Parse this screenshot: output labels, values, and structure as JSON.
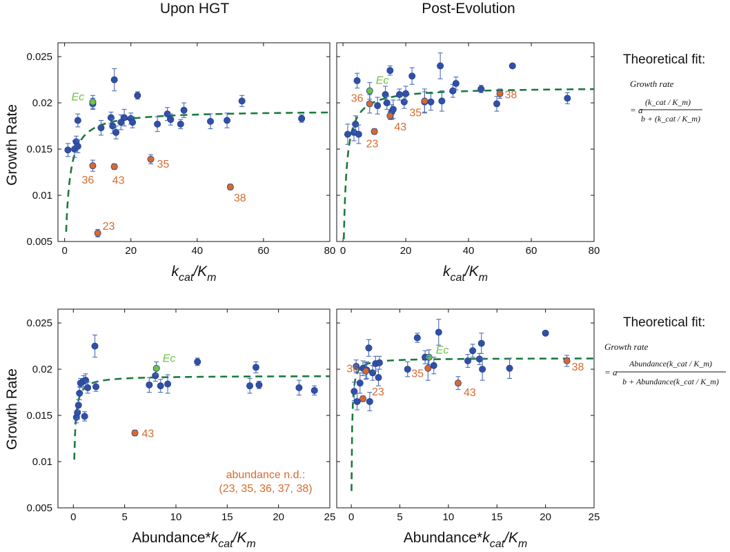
{
  "figure": {
    "column_titles": [
      "Upon HGT",
      "Post-Evolution"
    ],
    "ylabel": "Growth Rate",
    "theoretical_fit": {
      "title": "Theoretical fit:",
      "formula_top": {
        "lhs": "Growth rate",
        "numerator": "(k_cat / K_m)",
        "denominator": "b + (k_cat / K_m)"
      },
      "formula_bottom": {
        "lhs": "Growth rate",
        "numerator": "Abundance(k_cat / K_m)",
        "denominator": "b + Abundance(k_cat / K_m)"
      }
    },
    "footnote": [
      "abundance n.d.:",
      "(23, 35, 36, 37, 38)"
    ]
  },
  "colors": {
    "normal": "#3050a8",
    "highlight": "#d8692e",
    "ec": "#6cc24a",
    "fit": "#1a7a3a",
    "errorbar": "#4a6ab8"
  },
  "chart_data": [
    {
      "type": "scatter",
      "panel": "top-left",
      "xlabel_main": "k",
      "xlabel_sub1": "cat",
      "xlabel_mid": "/K",
      "xlabel_sub2": "m",
      "xlim": [
        -2,
        80
      ],
      "ylim": [
        0.005,
        0.0265
      ],
      "xticks": [
        0,
        20,
        40,
        60,
        80
      ],
      "xticklabels": [
        "0",
        "20",
        "40",
        "60",
        "80"
      ],
      "yticks": [
        0.005,
        0.01,
        0.015,
        0.02,
        0.025
      ],
      "yticklabels": [
        "0.005",
        "0.01",
        "0.015",
        "0.02",
        "0.025"
      ],
      "fit": {
        "a": 0.0192,
        "b": 1.0
      },
      "points": [
        {
          "x": 1,
          "y": 0.0149,
          "e": 0.0007,
          "c": "n"
        },
        {
          "x": 3,
          "y": 0.015,
          "e": 0.0009,
          "c": "n"
        },
        {
          "x": 3.5,
          "y": 0.0158,
          "e": 0.0006,
          "c": "n"
        },
        {
          "x": 4,
          "y": 0.0153,
          "e": 0.0007,
          "c": "n"
        },
        {
          "x": 4,
          "y": 0.0181,
          "e": 0.0007,
          "c": "n"
        },
        {
          "x": 8.5,
          "y": 0.0199,
          "e": 0.0006,
          "c": "n"
        },
        {
          "x": 11,
          "y": 0.0173,
          "e": 0.0008,
          "c": "n"
        },
        {
          "x": 14,
          "y": 0.0184,
          "e": 0.0006,
          "c": "n"
        },
        {
          "x": 14.5,
          "y": 0.0175,
          "e": 0.0008,
          "c": "n"
        },
        {
          "x": 15,
          "y": 0.0225,
          "e": 0.0012,
          "c": "n"
        },
        {
          "x": 15.5,
          "y": 0.0168,
          "e": 0.0007,
          "c": "n"
        },
        {
          "x": 17,
          "y": 0.0179,
          "e": 0.0008,
          "c": "n"
        },
        {
          "x": 18,
          "y": 0.0184,
          "e": 0.0009,
          "c": "n"
        },
        {
          "x": 20,
          "y": 0.0183,
          "e": 0.0006,
          "c": "n"
        },
        {
          "x": 20.5,
          "y": 0.0179,
          "e": 0.0006,
          "c": "n"
        },
        {
          "x": 22,
          "y": 0.0208,
          "e": 0.0004,
          "c": "n"
        },
        {
          "x": 28,
          "y": 0.0177,
          "e": 0.0008,
          "c": "n"
        },
        {
          "x": 31,
          "y": 0.0188,
          "e": 0.0007,
          "c": "n"
        },
        {
          "x": 32,
          "y": 0.0182,
          "e": 0.0006,
          "c": "n"
        },
        {
          "x": 35,
          "y": 0.0177,
          "e": 0.0005,
          "c": "n"
        },
        {
          "x": 36,
          "y": 0.0192,
          "e": 0.0008,
          "c": "n"
        },
        {
          "x": 44,
          "y": 0.018,
          "e": 0.0008,
          "c": "n"
        },
        {
          "x": 49,
          "y": 0.0181,
          "e": 0.0008,
          "c": "n"
        },
        {
          "x": 53.5,
          "y": 0.0202,
          "e": 0.0006,
          "c": "n"
        },
        {
          "x": 71.5,
          "y": 0.0183,
          "e": 0.0004,
          "c": "n"
        },
        {
          "x": 8.5,
          "y": 0.0201,
          "e": 0.0007,
          "c": "ec",
          "label": "Ec",
          "ldx": -31,
          "ldy": -2,
          "italic": true
        },
        {
          "x": 8.5,
          "y": 0.0132,
          "e": 0.0006,
          "c": "h",
          "label": "36",
          "ldx": -16,
          "ldy": 26
        },
        {
          "x": 15,
          "y": 0.0131,
          "e": 0.0003,
          "c": "h",
          "label": "43",
          "ldx": -3,
          "ldy": 25
        },
        {
          "x": 26,
          "y": 0.0139,
          "e": 0.0005,
          "c": "h",
          "label": "35",
          "ldx": 9,
          "ldy": 12
        },
        {
          "x": 50,
          "y": 0.0109,
          "e": 0.0003,
          "c": "h",
          "label": "38",
          "ldx": 5,
          "ldy": 21
        },
        {
          "x": 10,
          "y": 0.0059,
          "e": 0.0004,
          "c": "h",
          "label": "23",
          "ldx": 7,
          "ldy": -5
        }
      ]
    },
    {
      "type": "scatter",
      "panel": "top-right",
      "xlabel_main": "k",
      "xlabel_sub1": "cat",
      "xlabel_mid": "/K",
      "xlabel_sub2": "m",
      "xlim": [
        -2,
        80
      ],
      "ylim": [
        0.005,
        0.0265
      ],
      "xticks": [
        0,
        20,
        40,
        60,
        80
      ],
      "xticklabels": [
        "0",
        "20",
        "40",
        "60",
        "80"
      ],
      "yticks": [
        0.005,
        0.01,
        0.015,
        0.02,
        0.025
      ],
      "yticklabels": [],
      "fit": {
        "a": 0.0217,
        "b": 0.8
      },
      "points": [
        {
          "x": 1.5,
          "y": 0.0166,
          "e": 0.0011,
          "c": "n"
        },
        {
          "x": 3.5,
          "y": 0.0168,
          "e": 0.0009,
          "c": "n"
        },
        {
          "x": 4,
          "y": 0.0177,
          "e": 0.0009,
          "c": "n"
        },
        {
          "x": 4.5,
          "y": 0.0224,
          "e": 0.0008,
          "c": "n"
        },
        {
          "x": 5,
          "y": 0.0166,
          "e": 0.001,
          "c": "n"
        },
        {
          "x": 11,
          "y": 0.0197,
          "e": 0.0009,
          "c": "n"
        },
        {
          "x": 13.5,
          "y": 0.0209,
          "e": 0.0009,
          "c": "n"
        },
        {
          "x": 14,
          "y": 0.02,
          "e": 0.0007,
          "c": "n"
        },
        {
          "x": 15,
          "y": 0.0235,
          "e": 0.0005,
          "c": "n"
        },
        {
          "x": 15.5,
          "y": 0.019,
          "e": 0.0008,
          "c": "n"
        },
        {
          "x": 16,
          "y": 0.0193,
          "e": 0.001,
          "c": "n"
        },
        {
          "x": 18,
          "y": 0.0209,
          "e": 0.0006,
          "c": "n"
        },
        {
          "x": 19.5,
          "y": 0.0201,
          "e": 0.0007,
          "c": "n"
        },
        {
          "x": 20,
          "y": 0.021,
          "e": 0.0008,
          "c": "n"
        },
        {
          "x": 22,
          "y": 0.0229,
          "e": 0.0009,
          "c": "n"
        },
        {
          "x": 26,
          "y": 0.0201,
          "e": 0.0011,
          "c": "n"
        },
        {
          "x": 28,
          "y": 0.0201,
          "e": 0.0009,
          "c": "n"
        },
        {
          "x": 31,
          "y": 0.024,
          "e": 0.0014,
          "c": "n"
        },
        {
          "x": 31.5,
          "y": 0.0202,
          "e": 0.0011,
          "c": "n"
        },
        {
          "x": 35,
          "y": 0.0213,
          "e": 0.0007,
          "c": "n"
        },
        {
          "x": 36,
          "y": 0.0221,
          "e": 0.0007,
          "c": "n"
        },
        {
          "x": 44,
          "y": 0.0215,
          "e": 0.0004,
          "c": "n"
        },
        {
          "x": 49,
          "y": 0.0199,
          "e": 0.0008,
          "c": "n"
        },
        {
          "x": 54,
          "y": 0.024,
          "e": 0.0002,
          "c": "n"
        },
        {
          "x": 71.5,
          "y": 0.0205,
          "e": 0.0006,
          "c": "n"
        },
        {
          "x": 8.5,
          "y": 0.0213,
          "e": 0.0009,
          "c": "ec",
          "label": "Ec",
          "ldx": 9,
          "ldy": -10,
          "italic": true
        },
        {
          "x": 8.5,
          "y": 0.0199,
          "e": 0.001,
          "c": "h",
          "label": "36",
          "ldx": -27,
          "ldy": -3
        },
        {
          "x": 10,
          "y": 0.0169,
          "e": 0.0003,
          "c": "h",
          "label": "23",
          "ldx": -12,
          "ldy": 23
        },
        {
          "x": 15,
          "y": 0.0186,
          "e": 0.0004,
          "c": "h",
          "label": "43",
          "ldx": 6,
          "ldy": 21
        },
        {
          "x": 26,
          "y": 0.0202,
          "e": 0.0013,
          "c": "h",
          "label": "35",
          "ldx": -22,
          "ldy": 22
        },
        {
          "x": 50,
          "y": 0.021,
          "e": 0.0005,
          "c": "h",
          "label": "38",
          "ldx": 7,
          "ldy": 7
        }
      ]
    },
    {
      "type": "scatter",
      "panel": "bottom-left",
      "xlabel_main": "Abundance*k",
      "xlabel_sub1": "cat",
      "xlabel_mid": "/K",
      "xlabel_sub2": "m",
      "xlim": [
        -1.5,
        25
      ],
      "ylim": [
        0.005,
        0.0265
      ],
      "xticks": [
        0,
        5,
        10,
        15,
        20,
        25
      ],
      "xticklabels": [
        "0",
        "5",
        "10",
        "15",
        "20",
        "25"
      ],
      "yticks": [
        0.005,
        0.01,
        0.015,
        0.02,
        0.025
      ],
      "yticklabels": [
        "0.005",
        "0.01",
        "0.015",
        "0.02",
        "0.025"
      ],
      "fit": {
        "a": 0.0193,
        "b": 0.08
      },
      "points": [
        {
          "x": 0.3,
          "y": 0.0148,
          "e": 0.0006,
          "c": "n"
        },
        {
          "x": 0.4,
          "y": 0.0153,
          "e": 0.0007,
          "c": "n"
        },
        {
          "x": 0.5,
          "y": 0.0161,
          "e": 0.0006,
          "c": "n"
        },
        {
          "x": 0.6,
          "y": 0.0174,
          "e": 0.0007,
          "c": "n"
        },
        {
          "x": 0.7,
          "y": 0.0185,
          "e": 0.0005,
          "c": "n"
        },
        {
          "x": 1.0,
          "y": 0.0187,
          "e": 0.0006,
          "c": "n"
        },
        {
          "x": 1.1,
          "y": 0.0149,
          "e": 0.0005,
          "c": "n"
        },
        {
          "x": 1.2,
          "y": 0.0188,
          "e": 0.0007,
          "c": "n"
        },
        {
          "x": 1.4,
          "y": 0.018,
          "e": 0.0006,
          "c": "n"
        },
        {
          "x": 2.1,
          "y": 0.0225,
          "e": 0.0012,
          "c": "n"
        },
        {
          "x": 2.2,
          "y": 0.0181,
          "e": 0.0005,
          "c": "n"
        },
        {
          "x": 7.4,
          "y": 0.0183,
          "e": 0.0008,
          "c": "n"
        },
        {
          "x": 8.0,
          "y": 0.0193,
          "e": 0.0006,
          "c": "n"
        },
        {
          "x": 8.5,
          "y": 0.0182,
          "e": 0.0007,
          "c": "n"
        },
        {
          "x": 9.2,
          "y": 0.0184,
          "e": 0.001,
          "c": "n"
        },
        {
          "x": 12.1,
          "y": 0.0208,
          "e": 0.0004,
          "c": "n"
        },
        {
          "x": 17.2,
          "y": 0.0182,
          "e": 0.0008,
          "c": "n"
        },
        {
          "x": 17.8,
          "y": 0.0202,
          "e": 0.0006,
          "c": "n"
        },
        {
          "x": 18.1,
          "y": 0.0183,
          "e": 0.0004,
          "c": "n"
        },
        {
          "x": 22.0,
          "y": 0.018,
          "e": 0.0008,
          "c": "n"
        },
        {
          "x": 23.5,
          "y": 0.0177,
          "e": 0.0005,
          "c": "n"
        },
        {
          "x": 8.1,
          "y": 0.0201,
          "e": 0.0007,
          "c": "ec",
          "label": "Ec",
          "ldx": 9,
          "ldy": -9,
          "italic": true
        },
        {
          "x": 6.0,
          "y": 0.0131,
          "e": 0.0003,
          "c": "h",
          "label": "43",
          "ldx": 10,
          "ldy": 6
        }
      ]
    },
    {
      "type": "scatter",
      "panel": "bottom-right",
      "xlabel_main": "Abundance*k",
      "xlabel_sub1": "cat",
      "xlabel_mid": "/K",
      "xlabel_sub2": "m",
      "xlim": [
        -1.5,
        25
      ],
      "ylim": [
        0.005,
        0.0265
      ],
      "xticks": [
        0,
        5,
        10,
        15,
        20,
        25
      ],
      "xticklabels": [
        "0",
        "5",
        "10",
        "15",
        "20",
        "25"
      ],
      "yticks": [
        0.005,
        0.01,
        0.015,
        0.02,
        0.025
      ],
      "yticklabels": [],
      "fit": {
        "a": 0.0212,
        "b": 0.05
      },
      "points": [
        {
          "x": 0.3,
          "y": 0.0176,
          "e": 0.001,
          "c": "n"
        },
        {
          "x": 0.5,
          "y": 0.0203,
          "e": 0.0007,
          "c": "n"
        },
        {
          "x": 0.6,
          "y": 0.0165,
          "e": 0.0009,
          "c": "n"
        },
        {
          "x": 0.9,
          "y": 0.0185,
          "e": 0.0011,
          "c": "n"
        },
        {
          "x": 1.2,
          "y": 0.0201,
          "e": 0.0008,
          "c": "n"
        },
        {
          "x": 1.6,
          "y": 0.0199,
          "e": 0.0009,
          "c": "n"
        },
        {
          "x": 1.8,
          "y": 0.0223,
          "e": 0.0009,
          "c": "n"
        },
        {
          "x": 1.9,
          "y": 0.0165,
          "e": 0.001,
          "c": "n"
        },
        {
          "x": 2.2,
          "y": 0.0196,
          "e": 0.0008,
          "c": "n"
        },
        {
          "x": 2.5,
          "y": 0.0206,
          "e": 0.0008,
          "c": "n"
        },
        {
          "x": 2.8,
          "y": 0.0191,
          "e": 0.0009,
          "c": "n"
        },
        {
          "x": 2.9,
          "y": 0.0207,
          "e": 0.0007,
          "c": "n"
        },
        {
          "x": 5.8,
          "y": 0.02,
          "e": 0.0008,
          "c": "n"
        },
        {
          "x": 6.8,
          "y": 0.0234,
          "e": 0.0005,
          "c": "n"
        },
        {
          "x": 7.6,
          "y": 0.0213,
          "e": 0.0007,
          "c": "n"
        },
        {
          "x": 8.5,
          "y": 0.0204,
          "e": 0.0009,
          "c": "n"
        },
        {
          "x": 9.0,
          "y": 0.024,
          "e": 0.0014,
          "c": "n"
        },
        {
          "x": 12.0,
          "y": 0.0209,
          "e": 0.0007,
          "c": "n"
        },
        {
          "x": 12.5,
          "y": 0.022,
          "e": 0.0007,
          "c": "n"
        },
        {
          "x": 13.2,
          "y": 0.0211,
          "e": 0.0006,
          "c": "n"
        },
        {
          "x": 13.4,
          "y": 0.0228,
          "e": 0.0011,
          "c": "n"
        },
        {
          "x": 13.5,
          "y": 0.02,
          "e": 0.0012,
          "c": "n"
        },
        {
          "x": 16.3,
          "y": 0.0201,
          "e": 0.0011,
          "c": "n"
        },
        {
          "x": 20.0,
          "y": 0.0239,
          "e": 0.0002,
          "c": "n"
        },
        {
          "x": 8.0,
          "y": 0.0213,
          "e": 0.0008,
          "c": "ec",
          "label": "Ec",
          "ldx": 10,
          "ldy": -5,
          "italic": true
        },
        {
          "x": 1.5,
          "y": 0.0198,
          "e": 0.0009,
          "c": "h",
          "label": "36",
          "ldx": -28,
          "ldy": 2
        },
        {
          "x": 1.2,
          "y": 0.0168,
          "e": 0.0003,
          "c": "h",
          "label": "23",
          "ldx": 13,
          "ldy": -5
        },
        {
          "x": 7.9,
          "y": 0.0201,
          "e": 0.0013,
          "c": "h",
          "label": "35",
          "ldx": -24,
          "ldy": 13
        },
        {
          "x": 11.0,
          "y": 0.0185,
          "e": 0.0007,
          "c": "h",
          "label": "43",
          "ldx": 8,
          "ldy": 19
        },
        {
          "x": 22.2,
          "y": 0.0209,
          "e": 0.0006,
          "c": "h",
          "label": "38",
          "ldx": 7,
          "ldy": 14
        }
      ]
    }
  ]
}
